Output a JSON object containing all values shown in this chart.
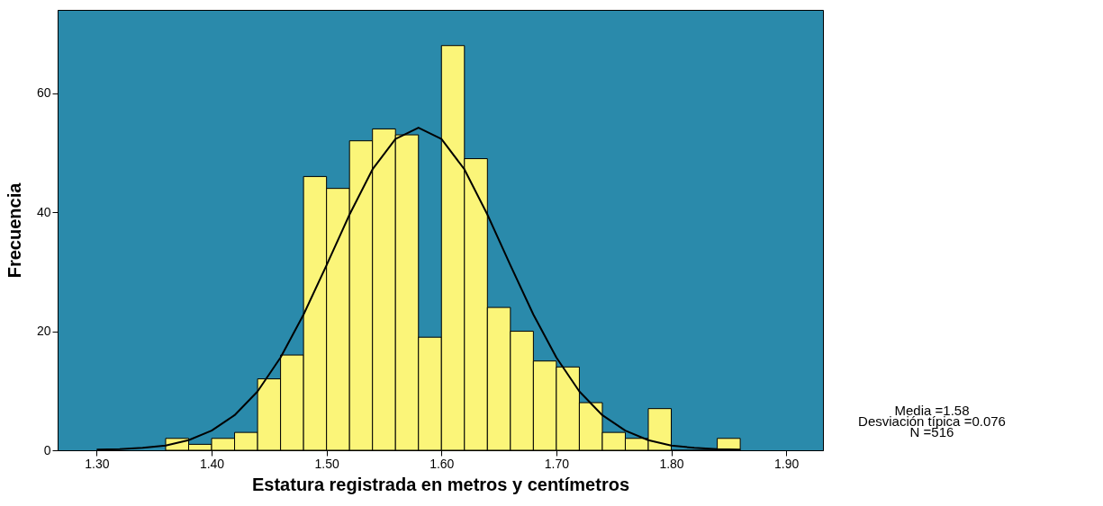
{
  "chart_data": {
    "type": "histogram",
    "xlabel": "Estatura registrada en metros y centímetros",
    "ylabel": "Frecuencia",
    "bins": [
      1.36,
      1.38,
      1.4,
      1.42,
      1.44,
      1.46,
      1.48,
      1.5,
      1.52,
      1.54,
      1.56,
      1.58,
      1.6,
      1.62,
      1.64,
      1.66,
      1.68,
      1.7,
      1.72,
      1.74,
      1.76,
      1.78,
      1.8,
      1.82,
      1.84,
      1.86
    ],
    "values": [
      2,
      1,
      2,
      3,
      12,
      16,
      46,
      44,
      52,
      54,
      53,
      19,
      68,
      49,
      24,
      20,
      15,
      14,
      8,
      3,
      2,
      7,
      0,
      0,
      2
    ],
    "color": "#fbf579",
    "series": [
      {
        "type": "line",
        "color": "#000000",
        "x": [
          1.3,
          1.32,
          1.34,
          1.36,
          1.38,
          1.4,
          1.42,
          1.44,
          1.46,
          1.48,
          1.5,
          1.52,
          1.54,
          1.56,
          1.58,
          1.6,
          1.62,
          1.64,
          1.66,
          1.68,
          1.7,
          1.72,
          1.74,
          1.76,
          1.78,
          1.8,
          1.82,
          1.84,
          1.86
        ],
        "values": [
          0.1,
          0.2,
          0.4,
          0.8,
          1.7,
          3.3,
          5.9,
          9.9,
          15.6,
          22.8,
          31.1,
          39.6,
          47.2,
          52.3,
          54.2,
          52.3,
          47.2,
          39.6,
          31.1,
          22.8,
          15.6,
          9.9,
          5.9,
          3.3,
          1.7,
          0.8,
          0.4,
          0.2,
          0.1
        ]
      }
    ],
    "xlim": [
      1.266,
      1.932
    ],
    "xticks": [
      {
        "value": 1.3,
        "label": "1.30"
      },
      {
        "value": 1.4,
        "label": "1.40"
      },
      {
        "value": 1.5,
        "label": "1.50"
      },
      {
        "value": 1.6,
        "label": "1.60"
      },
      {
        "value": 1.7,
        "label": "1.70"
      },
      {
        "value": 1.8,
        "label": "1.80"
      },
      {
        "value": 1.9,
        "label": "1.90"
      }
    ],
    "ylim": [
      0,
      74
    ],
    "yticks": [
      0,
      20,
      40,
      60
    ],
    "grid": false,
    "annotations": [
      "Media =1.58",
      "Desviación típica =0.076",
      "N =516"
    ]
  }
}
